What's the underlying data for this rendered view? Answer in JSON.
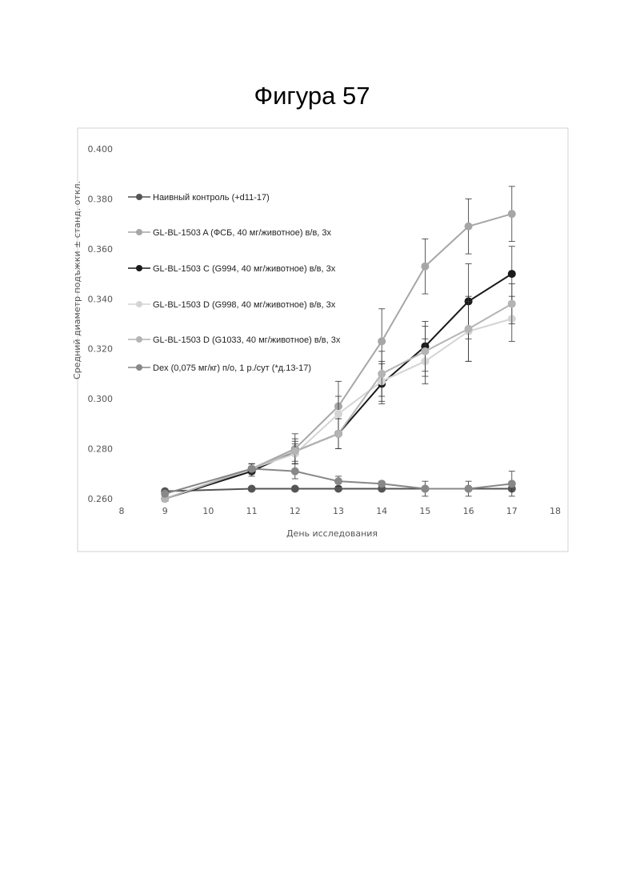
{
  "page": {
    "figure_title": "Фигура 57"
  },
  "chart_data": {
    "type": "line",
    "title": "",
    "xlabel": "День исследования",
    "ylabel": "Средний диаметр подъжки ± станд. откл.",
    "xlim": [
      8,
      18
    ],
    "ylim": [
      0.26,
      0.4
    ],
    "x_ticks": [
      8,
      9,
      10,
      11,
      12,
      13,
      14,
      15,
      16,
      17,
      18
    ],
    "y_ticks": [
      0.26,
      0.28,
      0.3,
      0.32,
      0.34,
      0.36,
      0.38,
      0.4
    ],
    "x_tick_labels": [
      "8",
      "9",
      "10",
      "11",
      "12",
      "13",
      "14",
      "15",
      "16",
      "17",
      "18"
    ],
    "y_tick_labels": [
      "0.260",
      "0.280",
      "0.300",
      "0.320",
      "0.340",
      "0.360",
      "0.380",
      "0.400"
    ],
    "grid": false,
    "legend_position": "top-left",
    "series": [
      {
        "name": "Наивный контроль (+d11-17)",
        "color": "#555555",
        "x": [
          9,
          11,
          12,
          13,
          14,
          15,
          16,
          17
        ],
        "values": [
          0.263,
          0.264,
          0.264,
          0.264,
          0.264,
          0.264,
          0.264,
          0.264
        ],
        "errors": [
          0,
          0,
          0,
          0,
          0,
          0,
          0,
          0
        ]
      },
      {
        "name": "GL-BL-1503 A (ФСБ, 40 мг/животное) в/в, 3х",
        "color": "#a6a6a6",
        "x": [
          9,
          11,
          12,
          13,
          14,
          15,
          16,
          17
        ],
        "values": [
          0.26,
          0.272,
          0.28,
          0.297,
          0.323,
          0.353,
          0.369,
          0.374
        ],
        "errors": [
          0.001,
          0.002,
          0.006,
          0.01,
          0.013,
          0.011,
          0.011,
          0.011
        ]
      },
      {
        "name": "GL-BL-1503 C (G994, 40 мг/животное) в/в, 3х",
        "color": "#1a1a1a",
        "x": [
          9,
          11,
          12,
          13,
          14,
          15,
          16,
          17
        ],
        "values": [
          0.26,
          0.271,
          0.279,
          0.286,
          0.306,
          0.321,
          0.339,
          0.35
        ],
        "errors": [
          0.001,
          0.002,
          0.005,
          0.006,
          0.008,
          0.01,
          0.015,
          0.011
        ]
      },
      {
        "name": "GL-BL-1503 D (G998, 40 мг/животное) в/в, 3х",
        "color": "#d4d4d4",
        "x": [
          9,
          11,
          12,
          13,
          14,
          15,
          16,
          17
        ],
        "values": [
          0.26,
          0.272,
          0.278,
          0.294,
          0.307,
          0.315,
          0.327,
          0.332
        ],
        "errors": [
          0.001,
          0.002,
          0.004,
          0.007,
          0.008,
          0.009,
          0.012,
          0.009
        ]
      },
      {
        "name": "GL-BL-1503 D (G1033, 40 мг/животное) в/в, 3х",
        "color": "#b4b4b4",
        "x": [
          9,
          11,
          12,
          13,
          14,
          15,
          16,
          17
        ],
        "values": [
          0.26,
          0.272,
          0.279,
          0.286,
          0.31,
          0.319,
          0.328,
          0.338
        ],
        "errors": [
          0.001,
          0.002,
          0.004,
          0.006,
          0.009,
          0.01,
          0.013,
          0.008
        ]
      },
      {
        "name": "Dex (0,075 мг/кг) п/о, 1 р./сут (*д.13-17)",
        "color": "#888888",
        "x": [
          9,
          11,
          12,
          13,
          14,
          15,
          16,
          17
        ],
        "values": [
          0.262,
          0.272,
          0.271,
          0.267,
          0.266,
          0.264,
          0.264,
          0.266
        ],
        "errors": [
          0.001,
          0.002,
          0.003,
          0.002,
          0.001,
          0.003,
          0.003,
          0.005
        ]
      }
    ]
  }
}
